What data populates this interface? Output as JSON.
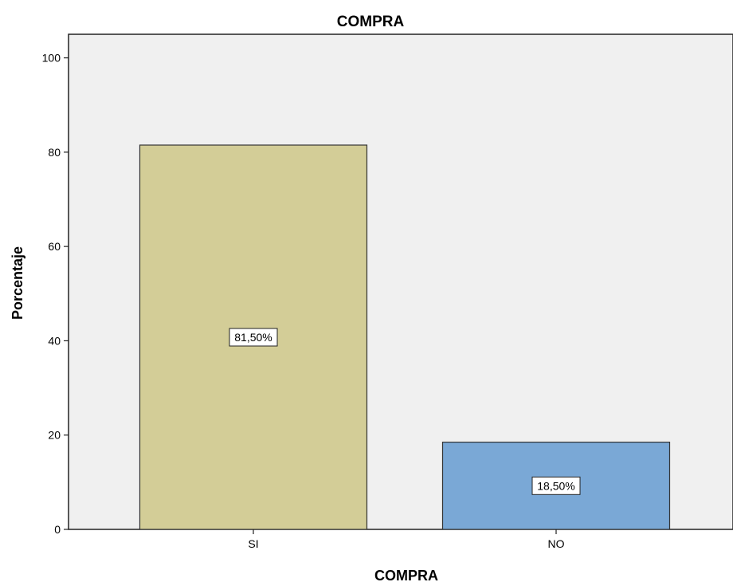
{
  "chart_data": {
    "type": "bar",
    "title": "COMPRA",
    "xlabel": "COMPRA",
    "ylabel": "Porcentaje",
    "categories": [
      "SI",
      "NO"
    ],
    "values": [
      81.5,
      18.5
    ],
    "data_labels": [
      "81,50%",
      "18,50%"
    ],
    "bar_colors": [
      "#d3cd97",
      "#7aa8d6"
    ],
    "ylim": [
      0,
      105
    ],
    "yticks": [
      0,
      20,
      40,
      60,
      80,
      100
    ],
    "grid": false,
    "legend": "none",
    "plot_background": "#f0f0f0"
  }
}
